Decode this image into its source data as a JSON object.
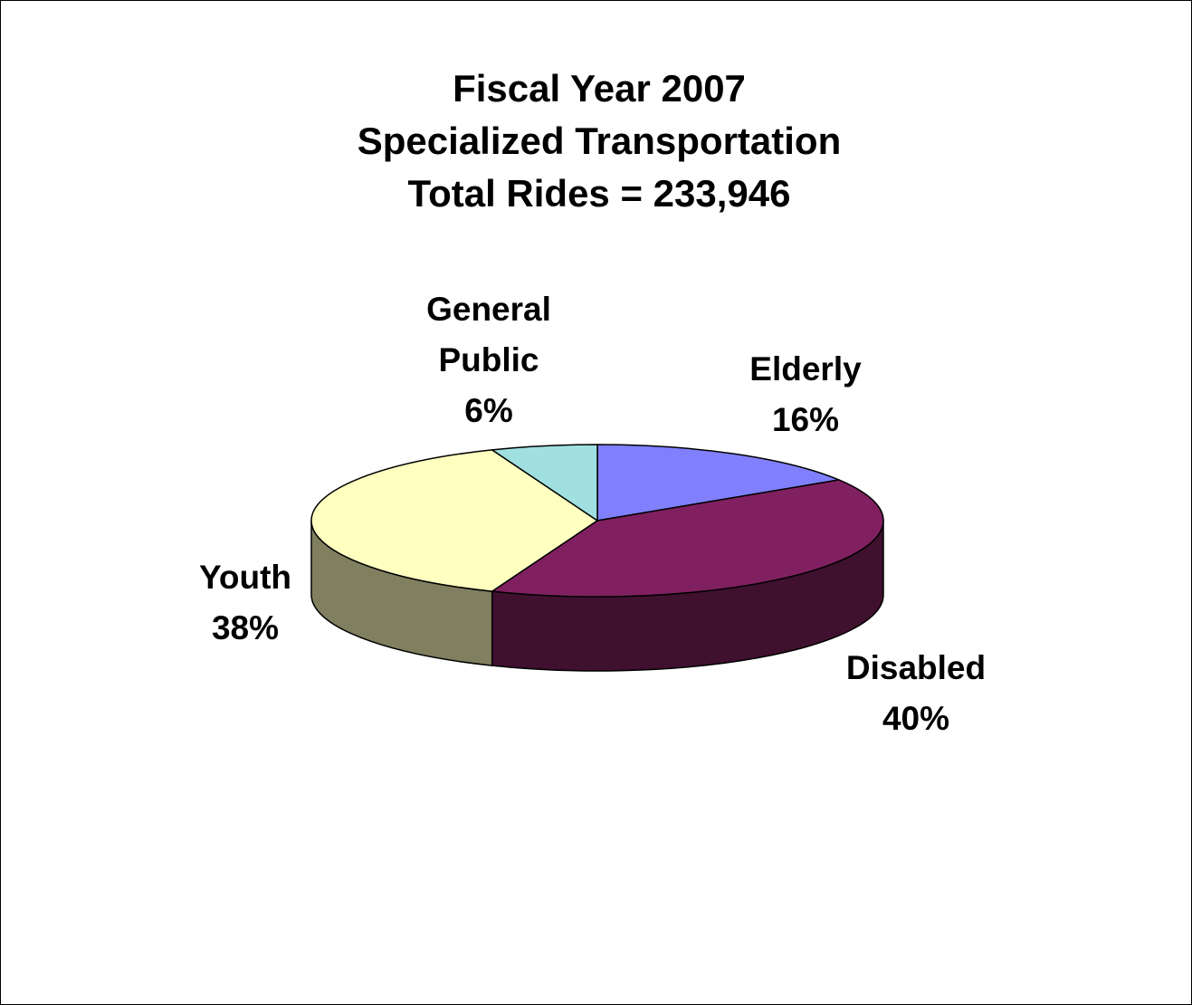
{
  "chart_data": {
    "type": "pie",
    "title_lines": [
      "Fiscal Year 2007",
      "Specialized Transportation",
      "Total Rides = 233,946"
    ],
    "slices": [
      {
        "name": "Elderly",
        "label_lines": [
          "Elderly"
        ],
        "percent_label": "16%",
        "value": 16,
        "color": "#8080FF",
        "side_color": "#40407F"
      },
      {
        "name": "Disabled",
        "label_lines": [
          "Disabled"
        ],
        "percent_label": "40%",
        "value": 40,
        "color": "#802060",
        "side_color": "#40102F"
      },
      {
        "name": "Youth",
        "label_lines": [
          "Youth"
        ],
        "percent_label": "38%",
        "value": 38,
        "color": "#FFFFC0",
        "side_color": "#808060"
      },
      {
        "name": "General Public",
        "label_lines": [
          "General",
          "Public"
        ],
        "percent_label": "6%",
        "value": 6,
        "color": "#A0E0E0",
        "side_color": "#507070"
      }
    ],
    "style": "3d-pie",
    "start_position": "top-center",
    "direction": "clockwise",
    "legend": "none"
  }
}
